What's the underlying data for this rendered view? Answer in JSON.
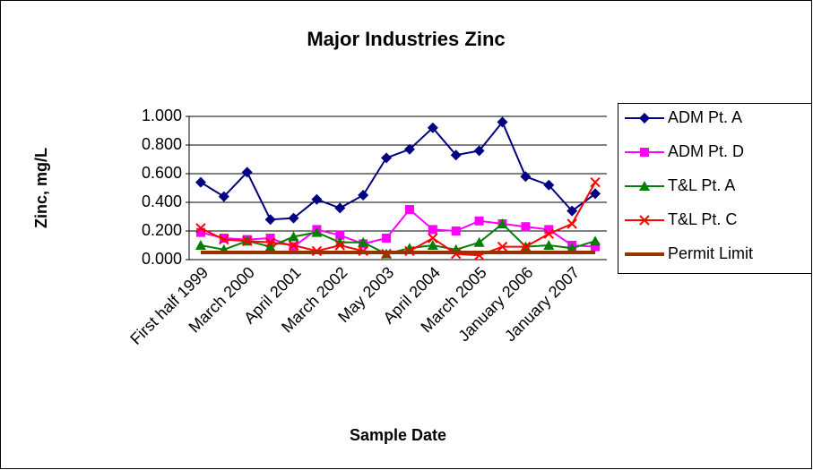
{
  "chart_data": {
    "type": "line",
    "title": "Major Industries Zinc",
    "x_label": "Sample Date",
    "y_label": "Zinc, mg/L",
    "categories": [
      "First half 1999",
      null,
      "March 2000",
      null,
      "April 2001",
      null,
      "March 2002",
      null,
      "May 2003",
      null,
      "April 2004",
      null,
      "March 2005",
      null,
      "January 2006",
      null,
      "January 2007",
      null
    ],
    "ylim": [
      0,
      1
    ],
    "yticks": [
      {
        "value": 0,
        "label": "0.000"
      },
      {
        "value": 0.2,
        "label": "0.200"
      },
      {
        "value": 0.4,
        "label": "0.400"
      },
      {
        "value": 0.6,
        "label": "0.600"
      },
      {
        "value": 0.8,
        "label": "0.800"
      },
      {
        "value": 1,
        "label": "1.000"
      }
    ],
    "grid": true,
    "legend": "right",
    "series": [
      {
        "name": "ADM Pt. A",
        "color": "#000080",
        "marker": "diamond",
        "values": [
          0.54,
          0.44,
          0.61,
          0.28,
          0.29,
          0.42,
          0.36,
          0.45,
          0.71,
          0.77,
          0.92,
          0.73,
          0.76,
          0.96,
          0.58,
          0.52,
          0.34,
          0.46
        ]
      },
      {
        "name": "ADM Pt. D",
        "color": "#ff00ff",
        "marker": "square",
        "values": [
          0.19,
          0.15,
          0.14,
          0.15,
          0.09,
          0.21,
          0.17,
          0.11,
          0.15,
          0.35,
          0.21,
          0.2,
          0.27,
          0.25,
          0.23,
          0.21,
          0.1,
          0.09
        ]
      },
      {
        "name": "T&L Pt. A",
        "color": "#008000",
        "marker": "triangle",
        "values": [
          0.1,
          0.07,
          0.13,
          0.09,
          0.16,
          0.19,
          0.12,
          0.12,
          0.04,
          0.08,
          0.1,
          0.07,
          0.12,
          0.25,
          0.09,
          0.1,
          0.08,
          0.13
        ]
      },
      {
        "name": "T&L Pt. C",
        "color": "#ff0000",
        "marker": "x",
        "values": [
          0.22,
          0.14,
          0.13,
          0.12,
          0.1,
          0.06,
          0.1,
          0.06,
          0.04,
          0.06,
          0.15,
          0.04,
          0.03,
          0.09,
          0.09,
          0.18,
          0.25,
          0.54
        ]
      },
      {
        "name": "Permit Limit",
        "color": "#993300",
        "marker": "none",
        "width": 4,
        "values": [
          0.05,
          0.05,
          0.05,
          0.05,
          0.05,
          0.05,
          0.05,
          0.05,
          0.05,
          0.05,
          0.05,
          0.05,
          0.05,
          0.05,
          0.05,
          0.05,
          0.05,
          0.05
        ]
      }
    ]
  }
}
